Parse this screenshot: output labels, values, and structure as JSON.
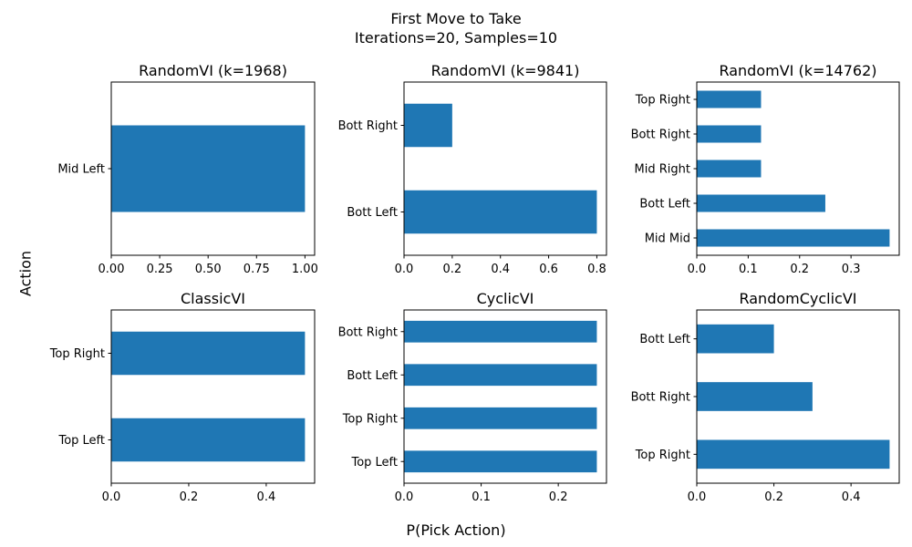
{
  "figure": {
    "title_line1": "First Move to Take",
    "title_line2": "Iterations=20, Samples=10",
    "xlabel": "P(Pick Action)",
    "ylabel": "Action",
    "bar_color": "#1f77b4"
  },
  "chart_data": [
    {
      "type": "bar",
      "orientation": "horizontal",
      "title": "RandomVI (k=1968)",
      "categories": [
        "Mid Left"
      ],
      "values": [
        1.0
      ],
      "xlim": [
        0,
        1.05
      ],
      "xticks": [
        "0.00",
        "0.25",
        "0.50",
        "0.75",
        "1.00"
      ]
    },
    {
      "type": "bar",
      "orientation": "horizontal",
      "title": "RandomVI (k=9841)",
      "categories": [
        "Bott Left",
        "Bott Right"
      ],
      "values": [
        0.8,
        0.2
      ],
      "xlim": [
        0,
        0.84
      ],
      "xticks": [
        "0.0",
        "0.2",
        "0.4",
        "0.6",
        "0.8"
      ]
    },
    {
      "type": "bar",
      "orientation": "horizontal",
      "title": "RandomVI (k=14762)",
      "categories": [
        "Mid Mid",
        "Bott Left",
        "Mid Right",
        "Bott Right",
        "Top Right"
      ],
      "values": [
        0.375,
        0.25,
        0.125,
        0.125,
        0.125
      ],
      "xlim": [
        0,
        0.39375
      ],
      "xticks": [
        "0.0",
        "0.1",
        "0.2",
        "0.3"
      ]
    },
    {
      "type": "bar",
      "orientation": "horizontal",
      "title": "ClassicVI",
      "categories": [
        "Top Left",
        "Top Right"
      ],
      "values": [
        0.5,
        0.5
      ],
      "xlim": [
        0,
        0.525
      ],
      "xticks": [
        "0.0",
        "0.2",
        "0.4"
      ]
    },
    {
      "type": "bar",
      "orientation": "horizontal",
      "title": "CyclicVI",
      "categories": [
        "Top Left",
        "Top Right",
        "Bott Left",
        "Bott Right"
      ],
      "values": [
        0.25,
        0.25,
        0.25,
        0.25
      ],
      "xlim": [
        0,
        0.2625
      ],
      "xticks": [
        "0.0",
        "0.1",
        "0.2"
      ]
    },
    {
      "type": "bar",
      "orientation": "horizontal",
      "title": "RandomCyclicVI",
      "categories": [
        "Top Right",
        "Bott Right",
        "Bott Left"
      ],
      "values": [
        0.5,
        0.3,
        0.2
      ],
      "xlim": [
        0,
        0.525
      ],
      "xticks": [
        "0.0",
        "0.2",
        "0.4"
      ]
    }
  ]
}
